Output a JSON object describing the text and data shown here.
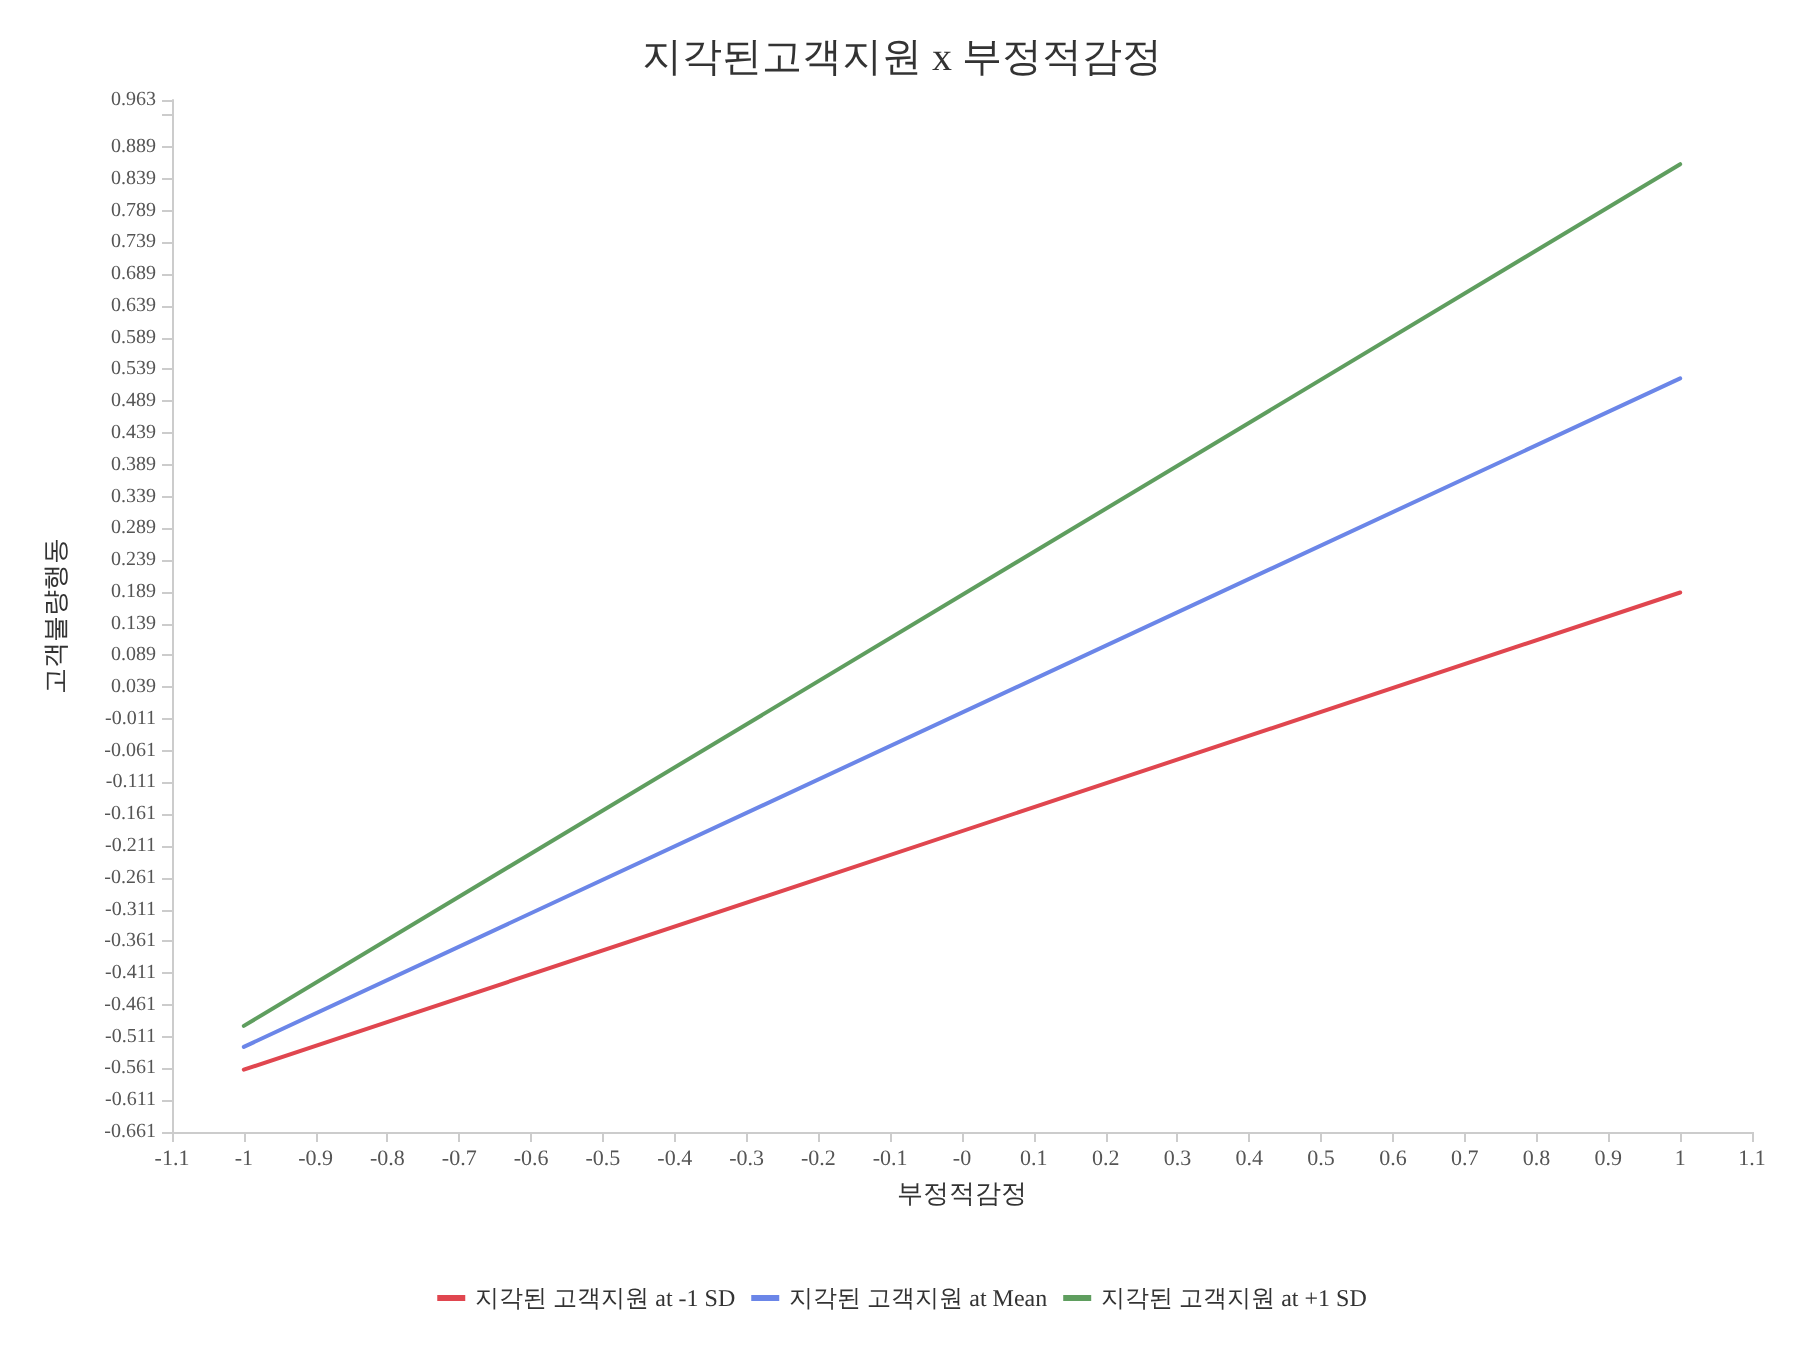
{
  "chart_data": {
    "type": "line",
    "title": "지각된고객지원 x 부정적감정",
    "xlabel": "부정적감정",
    "ylabel": "고객불량행동",
    "x": [
      -1,
      1
    ],
    "series": [
      {
        "name": "지각된 고객지원 at -1 SD",
        "color": "#e0464f",
        "values": [
          -0.563,
          0.188
        ]
      },
      {
        "name": "지각된 고객지원 at Mean",
        "color": "#6b86e8",
        "values": [
          -0.527,
          0.525
        ]
      },
      {
        "name": "지각된 고객지원 at +1 SD",
        "color": "#5f9e5f",
        "values": [
          -0.494,
          0.862
        ]
      }
    ],
    "xlim": [
      -1.1,
      1.1
    ],
    "xticks": [
      -1.1,
      -1,
      -0.9,
      -0.8,
      -0.7,
      -0.6,
      -0.5,
      -0.4,
      -0.3,
      -0.2,
      -0.1,
      {
        "value": 0,
        "label": "-0"
      },
      0.1,
      0.2,
      0.3,
      0.4,
      0.5,
      0.6,
      0.7,
      0.8,
      0.9,
      1,
      1.1
    ],
    "ylim": [
      -0.661,
      0.963
    ],
    "yticks": [
      -0.661,
      -0.611,
      -0.561,
      -0.511,
      -0.461,
      -0.411,
      -0.361,
      -0.311,
      -0.261,
      -0.211,
      -0.161,
      -0.111,
      -0.061,
      -0.011,
      0.039,
      0.089,
      0.139,
      0.189,
      0.239,
      0.289,
      0.339,
      0.389,
      0.439,
      0.489,
      0.539,
      0.589,
      0.639,
      0.689,
      0.739,
      0.789,
      0.839,
      0.889,
      {
        "value": 0.939,
        "label": null
      },
      0.963
    ],
    "grid": false,
    "legend": "bottom",
    "marker": "none",
    "line_style": "solid"
  }
}
